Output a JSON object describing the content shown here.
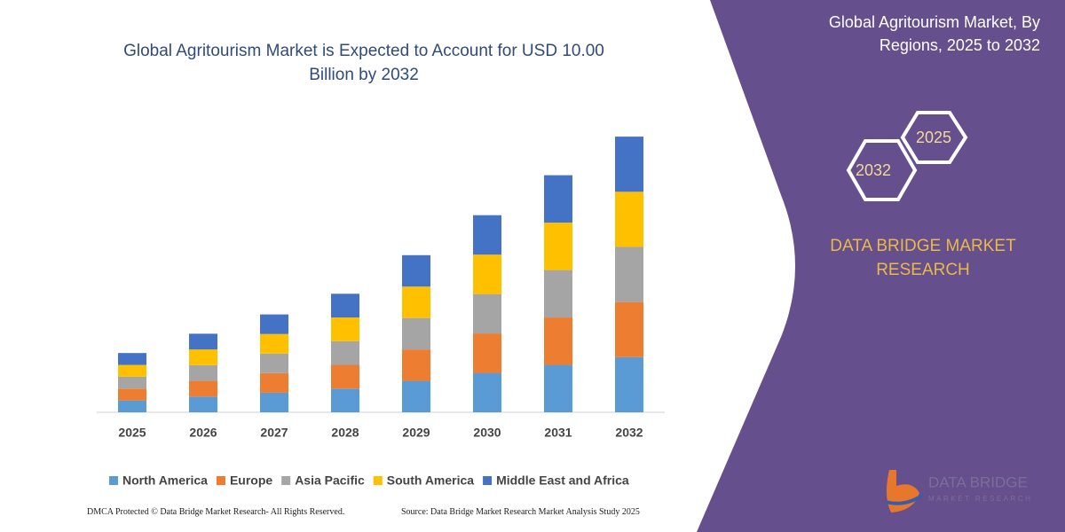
{
  "chart_data": {
    "type": "bar",
    "stacked": true,
    "title": "Global Agritourism Market is Expected to Account for USD 10.00 Billion by 2032",
    "categories": [
      "2025",
      "2026",
      "2027",
      "2028",
      "2029",
      "2030",
      "2031",
      "2032"
    ],
    "ylim": [
      0,
      11
    ],
    "series": [
      {
        "name": "North America",
        "color": "#5b9bd5",
        "values": [
          0.43,
          0.57,
          0.71,
          0.86,
          1.14,
          1.43,
          1.72,
          2.0
        ]
      },
      {
        "name": "Europe",
        "color": "#ed7d31",
        "values": [
          0.43,
          0.57,
          0.71,
          0.86,
          1.14,
          1.43,
          1.72,
          2.0
        ]
      },
      {
        "name": "Asia Pacific",
        "color": "#a5a5a5",
        "values": [
          0.43,
          0.57,
          0.71,
          0.86,
          1.14,
          1.43,
          1.72,
          2.0
        ]
      },
      {
        "name": "South America",
        "color": "#ffc000",
        "values": [
          0.43,
          0.57,
          0.71,
          0.86,
          1.14,
          1.43,
          1.72,
          2.0
        ]
      },
      {
        "name": "Middle East and Africa",
        "color": "#4472c4",
        "values": [
          0.43,
          0.57,
          0.71,
          0.86,
          1.14,
          1.43,
          1.72,
          2.0
        ]
      }
    ]
  },
  "panel": {
    "title": "Global Agritourism Market, By Regions, 2025 to 2032",
    "hex_small": "2025",
    "hex_large": "2032",
    "brand": "DATA BRIDGE MARKET RESEARCH",
    "logo_name": "DATA BRIDGE",
    "logo_tagline": "MARKET RESEARCH"
  },
  "footer": {
    "copyright": "DMCA Protected © Data Bridge Market Research- All Rights Reserved.",
    "source": "Source: Data Bridge Market Research Market Analysis Study 2025"
  }
}
